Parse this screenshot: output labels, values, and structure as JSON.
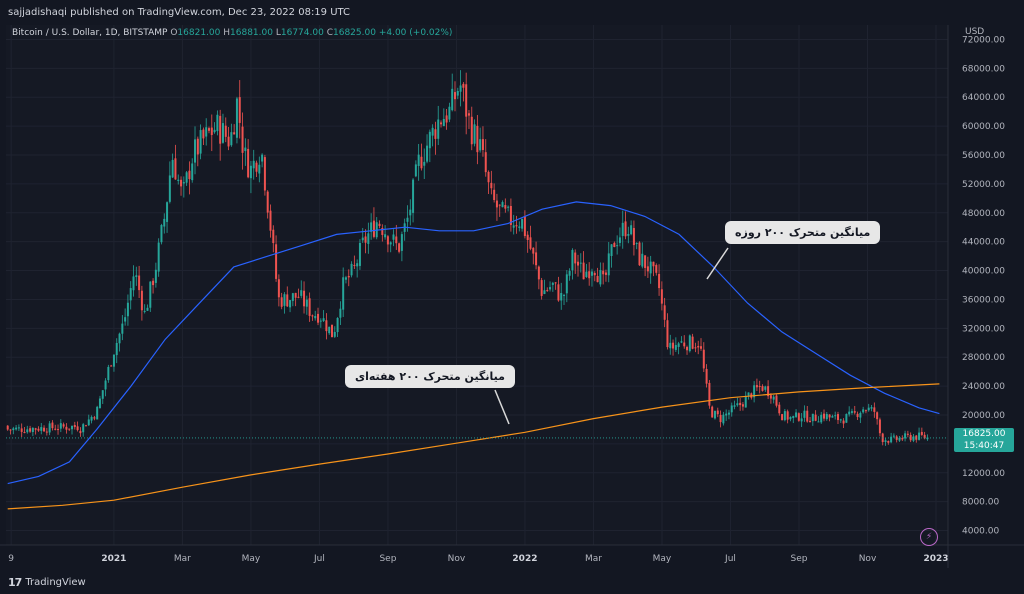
{
  "header": {
    "publisher_text": "sajjadishaqi published on TradingView.com, Dec 23, 2022 08:19 UTC"
  },
  "legend": {
    "symbol": "Bitcoin / U.S. Dollar, 1D, BITSTAMP",
    "open_label": "O",
    "open": "16821.00",
    "high_label": "H",
    "high": "16881.00",
    "low_label": "L",
    "low": "16774.00",
    "close_label": "C",
    "close": "16825.00",
    "change": "+4.00 (+0.02%)"
  },
  "price_tag": {
    "price": "16825.00",
    "countdown": "15:40:47"
  },
  "annotations": {
    "ma200_day": "میانگین متحرک ۲۰۰ روزه",
    "ma200_week": "میانگین متحرک ۲۰۰ هفته‌ای"
  },
  "footer": {
    "brand": "TradingView",
    "logo_glyph": "17"
  },
  "colors": {
    "background": "#131722",
    "up": "#26a69a",
    "down": "#ef5350",
    "ma_day": "#2962ff",
    "ma_week": "#f7931a",
    "text": "#d1d4dc"
  },
  "chart_data": {
    "type": "candlestick",
    "currency_label": "USD",
    "ylim": [
      2000,
      74000
    ],
    "y_ticks": [
      4000,
      8000,
      12000,
      16000,
      20000,
      24000,
      28000,
      32000,
      36000,
      40000,
      44000,
      48000,
      52000,
      56000,
      60000,
      64000,
      68000,
      72000
    ],
    "y_tick_labels": [
      "4000.00",
      "8000.00",
      "12000.00",
      "16000.00",
      "20000.00",
      "24000.00",
      "28000.00",
      "32000.00",
      "36000.00",
      "40000.00",
      "44000.00",
      "48000.00",
      "52000.00",
      "56000.00",
      "60000.00",
      "64000.00",
      "68000.00",
      "72000.00"
    ],
    "x_ticks": [
      {
        "label": "9",
        "m": 9,
        "bold": false
      },
      {
        "label": "2021",
        "m": 12,
        "bold": true
      },
      {
        "label": "Mar",
        "m": 14,
        "bold": false
      },
      {
        "label": "May",
        "m": 16,
        "bold": false
      },
      {
        "label": "Jul",
        "m": 18,
        "bold": false
      },
      {
        "label": "Sep",
        "m": 20,
        "bold": false
      },
      {
        "label": "Nov",
        "m": 22,
        "bold": false
      },
      {
        "label": "2022",
        "m": 24,
        "bold": true
      },
      {
        "label": "Mar",
        "m": 26,
        "bold": false
      },
      {
        "label": "May",
        "m": 28,
        "bold": false
      },
      {
        "label": "Jul",
        "m": 30,
        "bold": false
      },
      {
        "label": "Sep",
        "m": 32,
        "bold": false
      },
      {
        "label": "Nov",
        "m": 34,
        "bold": false
      },
      {
        "label": "2023",
        "m": 36,
        "bold": true
      }
    ],
    "price_path": [
      [
        11.0,
        18000
      ],
      [
        11.5,
        20500
      ],
      [
        12.0,
        29000
      ],
      [
        12.3,
        33000
      ],
      [
        12.6,
        40000
      ],
      [
        12.9,
        34000
      ],
      [
        13.2,
        40000
      ],
      [
        13.5,
        48000
      ],
      [
        13.7,
        56000
      ],
      [
        14.0,
        50000
      ],
      [
        14.3,
        56000
      ],
      [
        14.6,
        58000
      ],
      [
        15.0,
        60000
      ],
      [
        15.4,
        58000
      ],
      [
        15.6,
        63500
      ],
      [
        15.8,
        56000
      ],
      [
        16.0,
        54000
      ],
      [
        16.3,
        57000
      ],
      [
        16.6,
        45000
      ],
      [
        16.8,
        36000
      ],
      [
        17.0,
        36000
      ],
      [
        17.4,
        36500
      ],
      [
        17.8,
        34000
      ],
      [
        18.0,
        34000
      ],
      [
        18.4,
        31000
      ],
      [
        18.7,
        38000
      ],
      [
        19.0,
        40000
      ],
      [
        19.3,
        44000
      ],
      [
        19.7,
        47000
      ],
      [
        20.0,
        45000
      ],
      [
        20.3,
        43000
      ],
      [
        20.6,
        47500
      ],
      [
        20.9,
        55000
      ],
      [
        21.2,
        58000
      ],
      [
        21.5,
        61000
      ],
      [
        21.8,
        62000
      ],
      [
        22.1,
        66000
      ],
      [
        22.4,
        60000
      ],
      [
        22.7,
        57000
      ],
      [
        23.0,
        50000
      ],
      [
        23.3,
        48000
      ],
      [
        23.6,
        47000
      ],
      [
        23.9,
        47000
      ],
      [
        24.2,
        42500
      ],
      [
        24.5,
        37000
      ],
      [
        24.8,
        38000
      ],
      [
        25.1,
        36000
      ],
      [
        25.4,
        42000
      ],
      [
        25.7,
        39500
      ],
      [
        26.0,
        41000
      ],
      [
        26.3,
        38000
      ],
      [
        26.6,
        44000
      ],
      [
        27.0,
        46500
      ],
      [
        27.3,
        42000
      ],
      [
        27.6,
        40500
      ],
      [
        27.9,
        38000
      ],
      [
        28.2,
        29000
      ],
      [
        28.5,
        30000
      ],
      [
        28.8,
        30000
      ],
      [
        29.1,
        30000
      ],
      [
        29.4,
        20500
      ],
      [
        29.7,
        19500
      ],
      [
        30.0,
        20500
      ],
      [
        30.3,
        21500
      ],
      [
        30.6,
        23000
      ],
      [
        30.9,
        24000
      ],
      [
        31.2,
        23000
      ],
      [
        31.5,
        20000
      ],
      [
        31.8,
        19500
      ],
      [
        32.1,
        20000
      ],
      [
        32.4,
        19500
      ],
      [
        32.7,
        20000
      ],
      [
        33.0,
        19500
      ],
      [
        33.3,
        19500
      ],
      [
        33.6,
        20000
      ],
      [
        33.9,
        21000
      ],
      [
        34.2,
        20500
      ],
      [
        34.4,
        16800
      ],
      [
        34.7,
        16500
      ],
      [
        35.0,
        16800
      ],
      [
        35.3,
        17000
      ],
      [
        35.6,
        17000
      ],
      [
        35.75,
        16825
      ]
    ],
    "series": [
      {
        "name": "میانگین متحرک ۲۰۰ روزه",
        "color": "#2962ff",
        "points": [
          [
            8.9,
            10500
          ],
          [
            9.8,
            11500
          ],
          [
            10.7,
            13500
          ],
          [
            11.5,
            18000
          ],
          [
            12.5,
            24000
          ],
          [
            13.5,
            30500
          ],
          [
            14.5,
            35500
          ],
          [
            15.5,
            40500
          ],
          [
            16.5,
            42000
          ],
          [
            17.5,
            43500
          ],
          [
            18.5,
            45000
          ],
          [
            19.5,
            45500
          ],
          [
            20.5,
            46000
          ],
          [
            21.5,
            45500
          ],
          [
            22.5,
            45500
          ],
          [
            23.5,
            46500
          ],
          [
            24.5,
            48500
          ],
          [
            25.5,
            49500
          ],
          [
            26.5,
            49000
          ],
          [
            27.5,
            47500
          ],
          [
            28.5,
            45000
          ],
          [
            29.5,
            40500
          ],
          [
            30.5,
            35500
          ],
          [
            31.5,
            31500
          ],
          [
            32.5,
            28500
          ],
          [
            33.5,
            25500
          ],
          [
            34.5,
            23000
          ],
          [
            35.5,
            21000
          ],
          [
            36.1,
            20200
          ]
        ]
      },
      {
        "name": "میانگین متحرک ۲۰۰ هفته‌ای",
        "color": "#f7931a",
        "points": [
          [
            8.9,
            7000
          ],
          [
            10.5,
            7500
          ],
          [
            12.0,
            8200
          ],
          [
            14.0,
            10000
          ],
          [
            16.0,
            11700
          ],
          [
            18.0,
            13200
          ],
          [
            20.0,
            14600
          ],
          [
            22.0,
            16100
          ],
          [
            24.0,
            17600
          ],
          [
            26.0,
            19500
          ],
          [
            28.0,
            21100
          ],
          [
            30.0,
            22400
          ],
          [
            32.0,
            23200
          ],
          [
            34.0,
            23800
          ],
          [
            36.1,
            24300
          ]
        ]
      }
    ],
    "last_price": 16825
  }
}
